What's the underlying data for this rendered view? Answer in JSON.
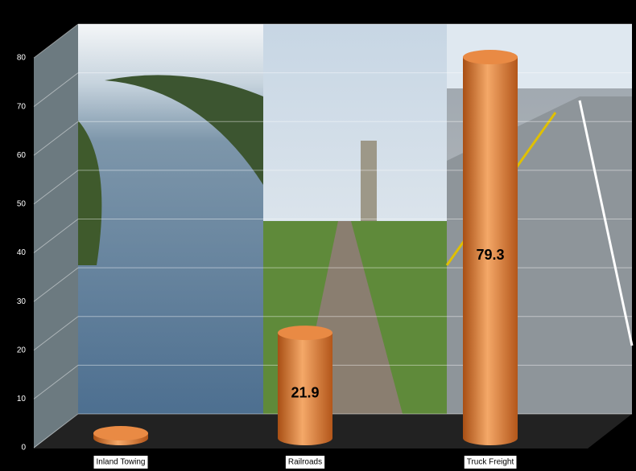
{
  "chart_data": {
    "type": "bar",
    "categories": [
      "Inland Towing",
      "Railroads",
      "Truck Freight"
    ],
    "values": [
      1,
      21.9,
      79.3
    ],
    "value_labels": [
      null,
      "21.9",
      "79.3"
    ],
    "color": "#e07f38",
    "ylim": [
      0,
      80
    ],
    "yticks": [
      0,
      10,
      20,
      30,
      40,
      50,
      60,
      70,
      80
    ],
    "grid": true
  }
}
